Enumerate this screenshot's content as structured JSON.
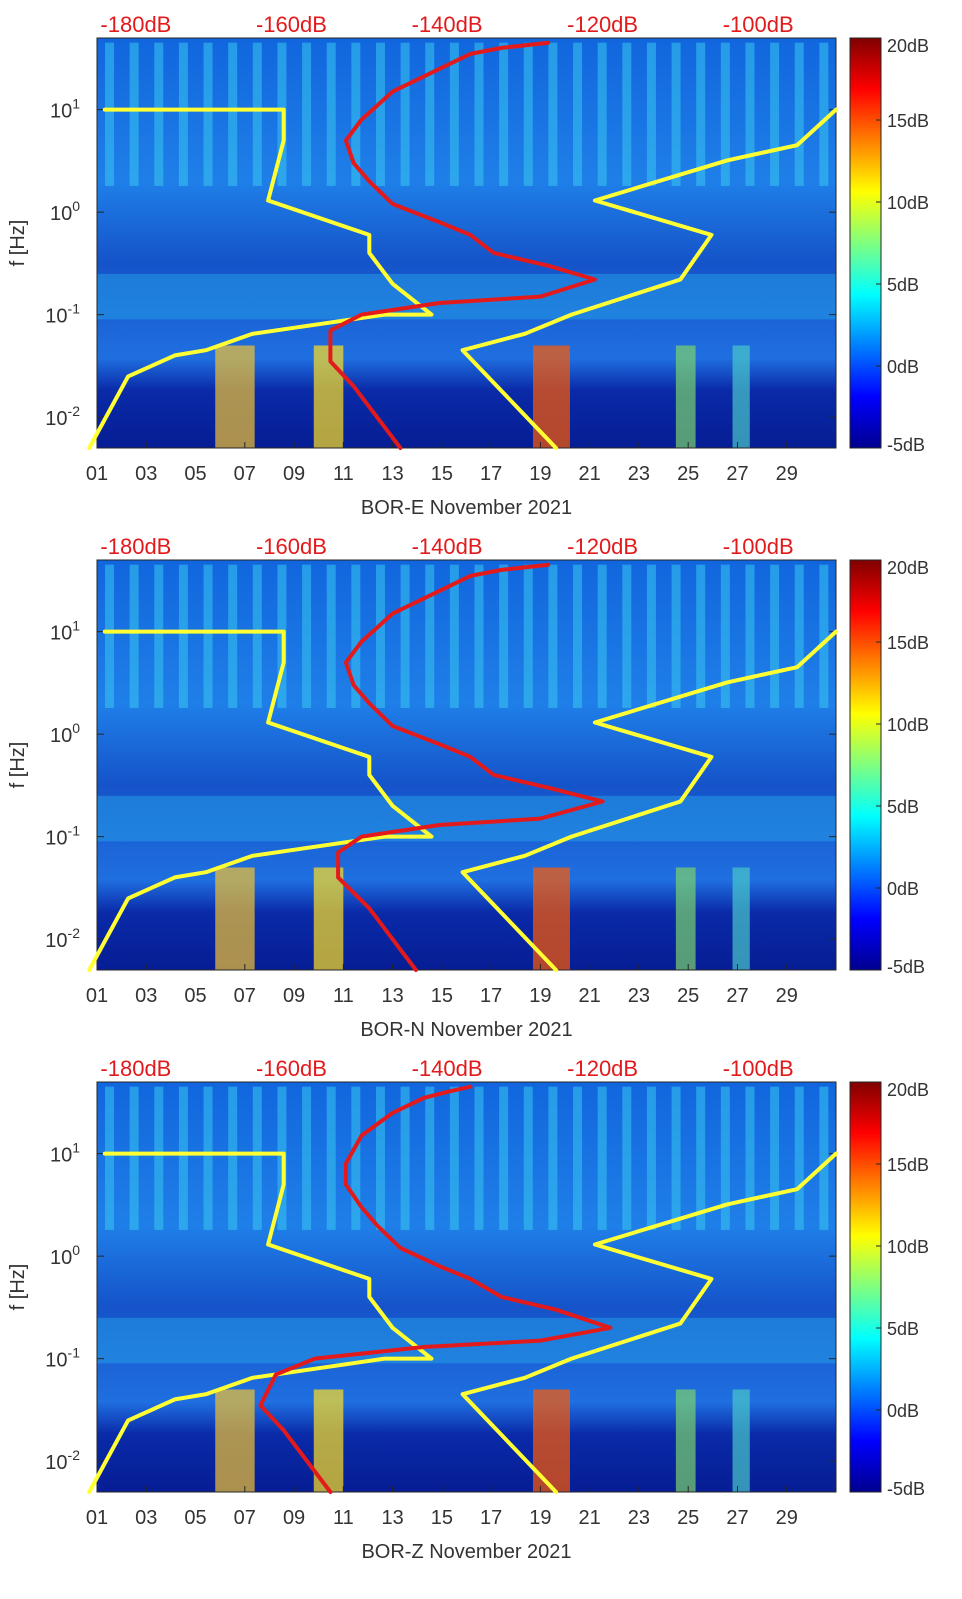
{
  "colors": {
    "top_axis_labels": "#e31a1c",
    "yellow_curve": "#ffff33",
    "red_curve": "#e31a1c",
    "axis_text": "#333333"
  },
  "chart_data": [
    {
      "type": "heatmap",
      "title": "",
      "xlabel": "BOR-E November 2021",
      "ylabel": "f [Hz]",
      "x_ticks": [
        "01",
        "03",
        "05",
        "07",
        "09",
        "11",
        "13",
        "15",
        "17",
        "19",
        "21",
        "23",
        "25",
        "27",
        "29"
      ],
      "y_ticks": [
        "10^-2",
        "10^-1",
        "10^0",
        "10^1"
      ],
      "y_tick_labels": [
        {
          "base": "10",
          "exp": "-2"
        },
        {
          "base": "10",
          "exp": "-1"
        },
        {
          "base": "10",
          "exp": "0"
        },
        {
          "base": "10",
          "exp": "1"
        }
      ],
      "ylim": [
        0.005,
        50
      ],
      "yscale": "log",
      "xlim": [
        1,
        31
      ],
      "colorbar_ticks": [
        "-5dB",
        "0dB",
        "5dB",
        "10dB",
        "15dB",
        "20dB"
      ],
      "colorbar_range": [
        -5,
        20
      ],
      "top_axis_ticks": [
        "-180dB",
        "-160dB",
        "-140dB",
        "-120dB",
        "-100dB"
      ],
      "top_axis_range": [
        -185,
        -90
      ],
      "series": [
        {
          "name": "yellow-curve",
          "x": [
            -184,
            -161,
            -161,
            -163,
            -150,
            -150,
            -147,
            -142,
            -148,
            -165,
            -171,
            -175,
            -181,
            -186
          ],
          "y": [
            10,
            10,
            5,
            1.3,
            0.6,
            0.4,
            0.2,
            0.1,
            0.1,
            0.065,
            0.045,
            0.04,
            0.025,
            0.005
          ]
        },
        {
          "name": "yellow-curve-right",
          "x": [
            -90,
            -95,
            -104,
            -121,
            -106,
            -110,
            -124,
            -130,
            -138,
            -126
          ],
          "y": [
            10,
            4.5,
            3.2,
            1.3,
            0.6,
            0.22,
            0.1,
            0.065,
            0.045,
            0.005
          ]
        },
        {
          "name": "red-curve",
          "x": [
            -127,
            -133,
            -137,
            -141,
            -147,
            -151,
            -153,
            -152,
            -150,
            -147,
            -141,
            -137,
            -134,
            -127,
            -121,
            -128,
            -141,
            -151,
            -155,
            -155,
            -152,
            -146
          ],
          "y": [
            45,
            40,
            35,
            25,
            15,
            8,
            5,
            3,
            2,
            1.2,
            0.8,
            0.6,
            0.4,
            0.3,
            0.22,
            0.15,
            0.13,
            0.1,
            0.07,
            0.035,
            0.02,
            0.005
          ]
        }
      ]
    },
    {
      "type": "heatmap",
      "title": "",
      "xlabel": "BOR-N November 2021",
      "ylabel": "f [Hz]",
      "x_ticks": [
        "01",
        "03",
        "05",
        "07",
        "09",
        "11",
        "13",
        "15",
        "17",
        "19",
        "21",
        "23",
        "25",
        "27",
        "29"
      ],
      "y_ticks": [
        "10^-2",
        "10^-1",
        "10^0",
        "10^1"
      ],
      "y_tick_labels": [
        {
          "base": "10",
          "exp": "-2"
        },
        {
          "base": "10",
          "exp": "-1"
        },
        {
          "base": "10",
          "exp": "0"
        },
        {
          "base": "10",
          "exp": "1"
        }
      ],
      "ylim": [
        0.005,
        50
      ],
      "yscale": "log",
      "xlim": [
        1,
        31
      ],
      "colorbar_ticks": [
        "-5dB",
        "0dB",
        "5dB",
        "10dB",
        "15dB",
        "20dB"
      ],
      "colorbar_range": [
        -5,
        20
      ],
      "top_axis_ticks": [
        "-180dB",
        "-160dB",
        "-140dB",
        "-120dB",
        "-100dB"
      ],
      "top_axis_range": [
        -185,
        -90
      ],
      "series": [
        {
          "name": "yellow-curve",
          "x": [
            -184,
            -161,
            -161,
            -163,
            -150,
            -150,
            -147,
            -142,
            -148,
            -165,
            -171,
            -175,
            -181,
            -186
          ],
          "y": [
            10,
            10,
            5,
            1.3,
            0.6,
            0.4,
            0.2,
            0.1,
            0.1,
            0.065,
            0.045,
            0.04,
            0.025,
            0.005
          ]
        },
        {
          "name": "yellow-curve-right",
          "x": [
            -90,
            -95,
            -104,
            -121,
            -106,
            -110,
            -124,
            -130,
            -138,
            -126
          ],
          "y": [
            10,
            4.5,
            3.2,
            1.3,
            0.6,
            0.22,
            0.1,
            0.065,
            0.045,
            0.005
          ]
        },
        {
          "name": "red-curve",
          "x": [
            -127,
            -133,
            -137,
            -141,
            -147,
            -151,
            -153,
            -152,
            -150,
            -147,
            -141,
            -137,
            -134,
            -127,
            -120,
            -128,
            -141,
            -151,
            -154,
            -154,
            -150,
            -144
          ],
          "y": [
            45,
            40,
            35,
            25,
            15,
            8,
            5,
            3,
            2,
            1.2,
            0.8,
            0.6,
            0.4,
            0.3,
            0.22,
            0.15,
            0.13,
            0.1,
            0.07,
            0.04,
            0.02,
            0.005
          ]
        }
      ]
    },
    {
      "type": "heatmap",
      "title": "",
      "xlabel": "BOR-Z November 2021",
      "ylabel": "f [Hz]",
      "x_ticks": [
        "01",
        "03",
        "05",
        "07",
        "09",
        "11",
        "13",
        "15",
        "17",
        "19",
        "21",
        "23",
        "25",
        "27",
        "29"
      ],
      "y_ticks": [
        "10^-2",
        "10^-1",
        "10^0",
        "10^1"
      ],
      "y_tick_labels": [
        {
          "base": "10",
          "exp": "-2"
        },
        {
          "base": "10",
          "exp": "-1"
        },
        {
          "base": "10",
          "exp": "0"
        },
        {
          "base": "10",
          "exp": "1"
        }
      ],
      "ylim": [
        0.005,
        50
      ],
      "yscale": "log",
      "xlim": [
        1,
        31
      ],
      "colorbar_ticks": [
        "-5dB",
        "0dB",
        "5dB",
        "10dB",
        "15dB",
        "20dB"
      ],
      "colorbar_range": [
        -5,
        20
      ],
      "top_axis_ticks": [
        "-180dB",
        "-160dB",
        "-140dB",
        "-120dB",
        "-100dB"
      ],
      "top_axis_range": [
        -185,
        -90
      ],
      "series": [
        {
          "name": "yellow-curve",
          "x": [
            -184,
            -161,
            -161,
            -163,
            -150,
            -150,
            -147,
            -142,
            -148,
            -165,
            -171,
            -175,
            -181,
            -186
          ],
          "y": [
            10,
            10,
            5,
            1.3,
            0.6,
            0.4,
            0.2,
            0.1,
            0.1,
            0.065,
            0.045,
            0.04,
            0.025,
            0.005
          ]
        },
        {
          "name": "yellow-curve-right",
          "x": [
            -90,
            -95,
            -104,
            -121,
            -106,
            -110,
            -124,
            -130,
            -138,
            -126
          ],
          "y": [
            10,
            4.5,
            3.2,
            1.3,
            0.6,
            0.22,
            0.1,
            0.065,
            0.045,
            0.005
          ]
        },
        {
          "name": "red-curve",
          "x": [
            -137,
            -140,
            -143,
            -147,
            -151,
            -153,
            -153,
            -151,
            -149,
            -146,
            -141,
            -137,
            -133,
            -126,
            -119,
            -128,
            -143,
            -157,
            -162,
            -164,
            -161,
            -155
          ],
          "y": [
            45,
            40,
            35,
            25,
            15,
            8,
            5,
            3,
            2,
            1.2,
            0.8,
            0.6,
            0.4,
            0.3,
            0.2,
            0.15,
            0.13,
            0.1,
            0.07,
            0.035,
            0.02,
            0.005
          ]
        }
      ]
    }
  ]
}
